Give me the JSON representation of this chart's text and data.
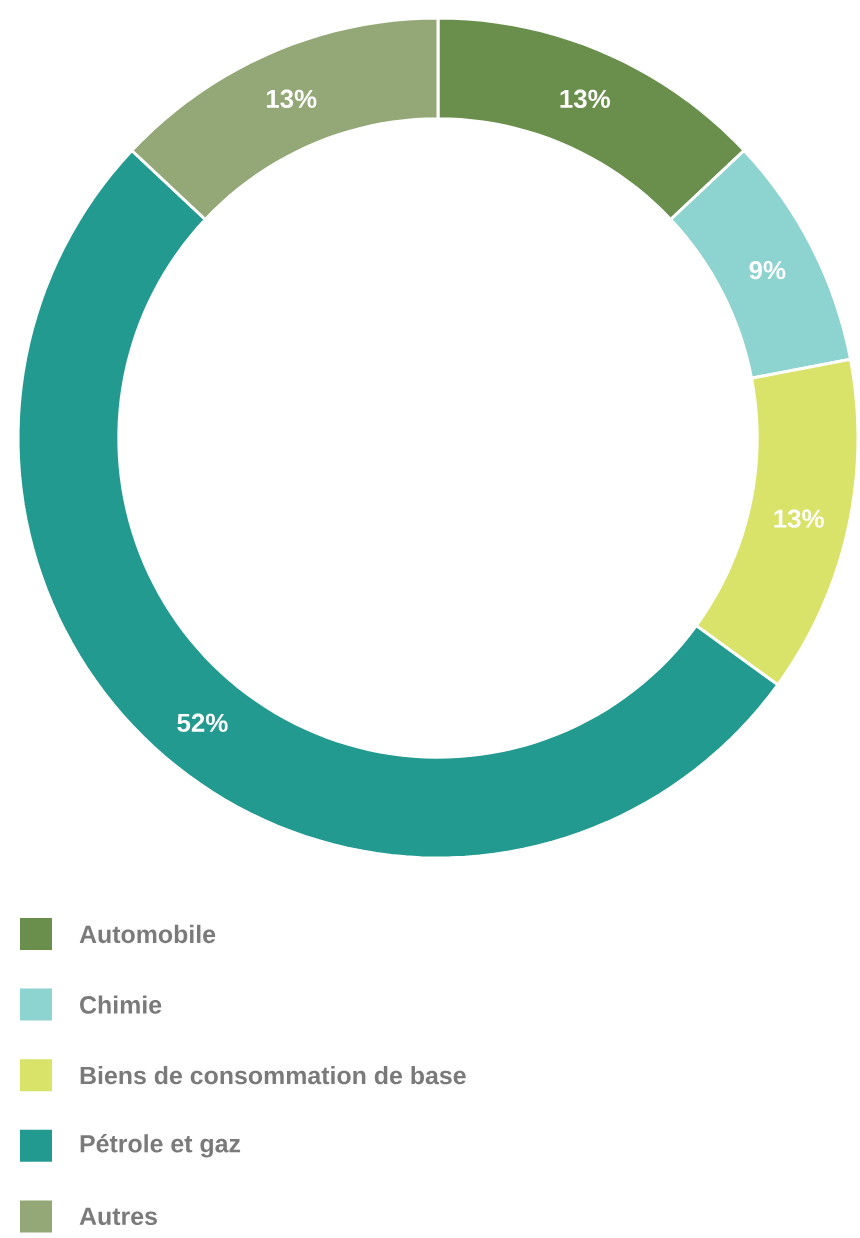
{
  "chart_data": {
    "type": "donut",
    "categories": [
      "Automobile",
      "Chimie",
      "Biens de consommation de base",
      "Pétrole et gaz",
      "Autres"
    ],
    "values": [
      13,
      9,
      13,
      52,
      13
    ],
    "value_labels": [
      "13%",
      "9%",
      "13%",
      "52%",
      "13%"
    ],
    "colors": [
      "#6a8f4c",
      "#8dd3cf",
      "#d9e269",
      "#239a90",
      "#94a877"
    ],
    "legend": "bottom"
  }
}
